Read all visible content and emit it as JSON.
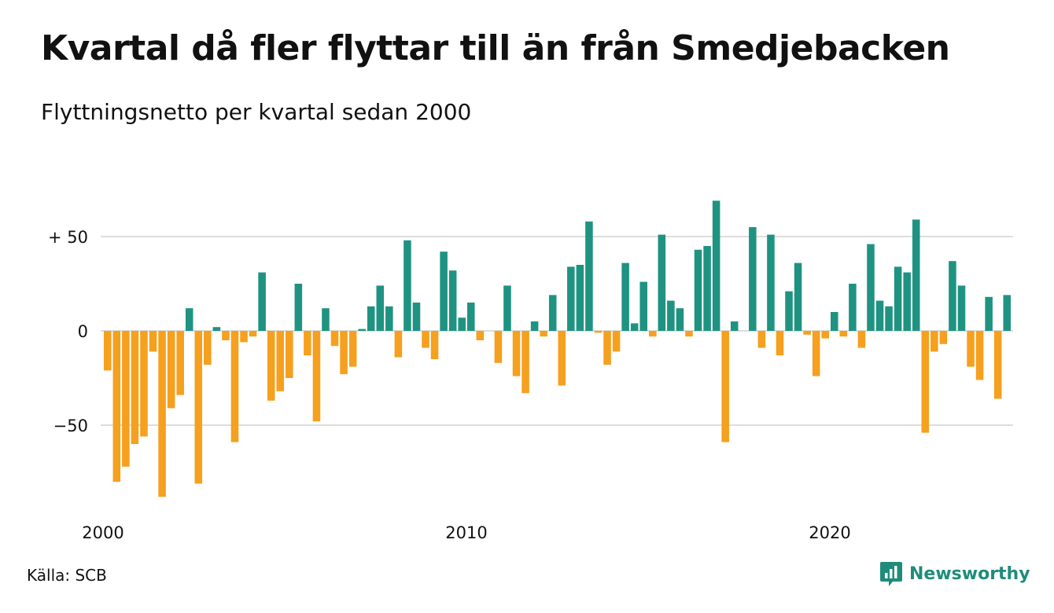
{
  "title": "Kvartal då fler flyttar till än från Smedjebacken",
  "subtitle": "Flyttningsnetto per kvartal sedan 2000",
  "source": "Källa: SCB",
  "brand": "Newsworthy",
  "colors": {
    "positive": "#1f9381",
    "negative": "#f5a01e",
    "grid": "#dddddd",
    "brand": "#1f8c7b"
  },
  "chart_data": {
    "type": "bar",
    "x_tick_labels": [
      "2000",
      "2010",
      "2020"
    ],
    "y_tick_labels": [
      "+ 50",
      "0",
      "−50"
    ],
    "y_ticks": [
      50,
      0,
      -50
    ],
    "ylim": [
      -90,
      72
    ],
    "grid": true,
    "first_period": "2000 Q1",
    "values": [
      -21,
      -80,
      -72,
      -60,
      -56,
      -11,
      -88,
      -41,
      -34,
      12,
      -81,
      -18,
      2,
      -5,
      -59,
      -6,
      -3,
      31,
      -37,
      -32,
      -25,
      25,
      -13,
      -48,
      12,
      -8,
      -23,
      -19,
      1,
      13,
      24,
      13,
      -14,
      48,
      15,
      -9,
      -15,
      42,
      32,
      7,
      15,
      -5,
      0,
      -17,
      24,
      -24,
      -33,
      5,
      -3,
      19,
      -29,
      34,
      35,
      58,
      -1,
      -18,
      -11,
      36,
      4,
      26,
      -3,
      51,
      16,
      12,
      -3,
      43,
      45,
      69,
      -59,
      5,
      0,
      55,
      -9,
      51,
      -13,
      21,
      36,
      -2,
      -24,
      -4,
      10,
      -3,
      25,
      -9,
      46,
      16,
      13,
      34,
      31,
      59,
      -54,
      -11,
      -7,
      37,
      24,
      -19,
      -26,
      18,
      -36,
      19
    ]
  }
}
